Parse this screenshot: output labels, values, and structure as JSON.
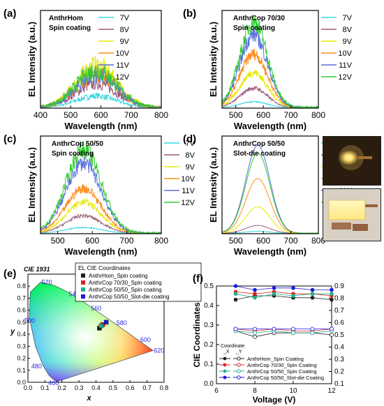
{
  "colors": {
    "7V": "#38d6e0",
    "8V": "#9a5a7a",
    "9V": "#e8e800",
    "10V": "#ff8c1a",
    "11V": "#5a6fe0",
    "12V": "#2fcc2f",
    "anthrhom": "#222222",
    "cop7030": "#e02020",
    "cop5050": "#20b090",
    "slotdie": "#1a1ae0"
  },
  "chart_data": [
    {
      "type": "line",
      "panel_label": "(a)",
      "title_lines": [
        "AnthrHom",
        "Spin coating"
      ],
      "xlabel": "Wavelength (nm)",
      "ylabel": "EL Intensity (a.u.)",
      "xlim": [
        400,
        800
      ],
      "xticks": [
        400,
        500,
        600,
        700,
        800
      ],
      "peak_nm": 585,
      "width_nm": 95,
      "noise": 0.55,
      "series": [
        {
          "name": "7V",
          "value": 0.12
        },
        {
          "name": "8V",
          "value": 0.25
        },
        {
          "name": "9V",
          "value": 0.42
        },
        {
          "name": "10V",
          "value": 0.35
        },
        {
          "name": "11V",
          "value": 0.33
        },
        {
          "name": "12V",
          "value": 0.38
        }
      ]
    },
    {
      "type": "line",
      "panel_label": "(b)",
      "title_lines": [
        "AnthrCop 70/30",
        "Spin coating"
      ],
      "xlabel": "Wavelength (nm)",
      "ylabel": "EL Intensity (a.u.)",
      "xlim": [
        450,
        800
      ],
      "xticks": [
        500,
        600,
        700,
        800
      ],
      "peak_nm": 565,
      "width_nm": 70,
      "noise": 0.22,
      "series": [
        {
          "name": "7V",
          "value": 0.06
        },
        {
          "name": "8V",
          "value": 0.2
        },
        {
          "name": "9V",
          "value": 0.36
        },
        {
          "name": "10V",
          "value": 0.55
        },
        {
          "name": "11V",
          "value": 0.75
        },
        {
          "name": "12V",
          "value": 0.88
        }
      ]
    },
    {
      "type": "line",
      "panel_label": "(c)",
      "title_lines": [
        "AnthrCop 50/50",
        "Spin coating"
      ],
      "xlabel": "Wavelength (nm)",
      "ylabel": "EL Intensity (a.u.)",
      "xlim": [
        450,
        800
      ],
      "xticks": [
        500,
        600,
        700,
        800
      ],
      "peak_nm": 575,
      "width_nm": 72,
      "noise": 0.22,
      "series": [
        {
          "name": "7V",
          "value": 0.06
        },
        {
          "name": "8V",
          "value": 0.18
        },
        {
          "name": "9V",
          "value": 0.32
        },
        {
          "name": "10V",
          "value": 0.46
        },
        {
          "name": "11V",
          "value": 0.72
        },
        {
          "name": "12V",
          "value": 0.86
        }
      ]
    },
    {
      "type": "line",
      "panel_label": "(d)",
      "title_lines": [
        "AnthrCop 50/50",
        "Slot-die coating"
      ],
      "xlabel": "Wavelength (nm)",
      "ylabel": "EL Intensity (a.u.)",
      "xlim": [
        450,
        800
      ],
      "xticks": [
        500,
        600,
        700,
        800
      ],
      "peak_nm": 580,
      "width_nm": 62,
      "noise": 0.0,
      "series": [
        {
          "name": "7V",
          "value": 0.02
        },
        {
          "name": "8V",
          "value": 0.08
        },
        {
          "name": "9V",
          "value": 0.27
        },
        {
          "name": "10V",
          "value": 0.56
        },
        {
          "name": "11V",
          "value": 0.9
        },
        {
          "name": "12V",
          "value": 0.82
        }
      ]
    },
    {
      "type": "scatter",
      "panel_label": "(e)",
      "title": "CIE 1931",
      "xlabel": "x",
      "ylabel": "y",
      "xlim": [
        0,
        0.8
      ],
      "ylim": [
        0,
        0.9
      ],
      "xticks": [
        0.0,
        0.1,
        0.2,
        0.3,
        0.4,
        0.5,
        0.6,
        0.7,
        0.8
      ],
      "yticks": [
        0.0,
        0.1,
        0.2,
        0.3,
        0.4,
        0.5,
        0.6,
        0.7,
        0.8
      ],
      "wavelength_labels": [
        "520",
        "540",
        "560",
        "580",
        "600",
        "620",
        "500",
        "480",
        "460"
      ],
      "legend_title": "EL CIE Coordinates",
      "points": [
        {
          "name": "AnthrHom_Spin coating",
          "x": 0.42,
          "y": 0.45
        },
        {
          "name": "AnthrCop 70/30_Spin coating",
          "x": 0.44,
          "y": 0.48
        },
        {
          "name": "AnthrCop 50/50_Spin coating",
          "x": 0.43,
          "y": 0.47
        },
        {
          "name": "AnthrCop 50/50_Slot-die coating",
          "x": 0.46,
          "y": 0.5
        }
      ]
    },
    {
      "type": "line",
      "panel_label": "(f)",
      "xlabel": "Voltage (V)",
      "ylabel": "CIE  Coordinates",
      "xlim": [
        6,
        12
      ],
      "ylim": [
        0,
        0.5
      ],
      "y2lim": [
        0.1,
        0.9
      ],
      "xticks": [
        6,
        8,
        10,
        12
      ],
      "yticks": [
        0.0,
        0.1,
        0.2,
        0.3,
        0.4,
        0.5
      ],
      "y2ticks": [
        0.1,
        0.2,
        0.3,
        0.4,
        0.5,
        0.6,
        0.7,
        0.8,
        0.9
      ],
      "legend_title": "Coordinate",
      "legend_cols": [
        "_X",
        "_Y"
      ],
      "x": [
        7,
        8,
        9,
        10,
        11,
        12
      ],
      "series": [
        {
          "name": "AnthrHom_Spin Coating",
          "cie_x": [
            0.43,
            0.45,
            0.45,
            0.44,
            0.44,
            0.43
          ],
          "cie_y": [
            0.27,
            0.24,
            0.26,
            0.26,
            0.26,
            0.25
          ]
        },
        {
          "name": "AnthrCop 70/30_Spin Coating",
          "cie_x": [
            0.47,
            0.46,
            0.47,
            0.46,
            0.46,
            0.45
          ],
          "cie_y": [
            0.28,
            0.27,
            0.28,
            0.27,
            0.27,
            0.28
          ]
        },
        {
          "name": "AnthrCop 50/50_Spin Coating",
          "cie_x": [
            0.46,
            0.44,
            0.46,
            0.45,
            0.46,
            0.46
          ],
          "cie_y": [
            0.27,
            0.26,
            0.27,
            0.26,
            0.26,
            0.27
          ]
        },
        {
          "name": "AnthrCop 50/50_Slot-die Coating",
          "cie_x": [
            0.5,
            0.48,
            0.49,
            0.49,
            0.48,
            0.48
          ],
          "cie_y": [
            0.28,
            0.28,
            0.28,
            0.28,
            0.28,
            0.28
          ]
        }
      ]
    }
  ]
}
